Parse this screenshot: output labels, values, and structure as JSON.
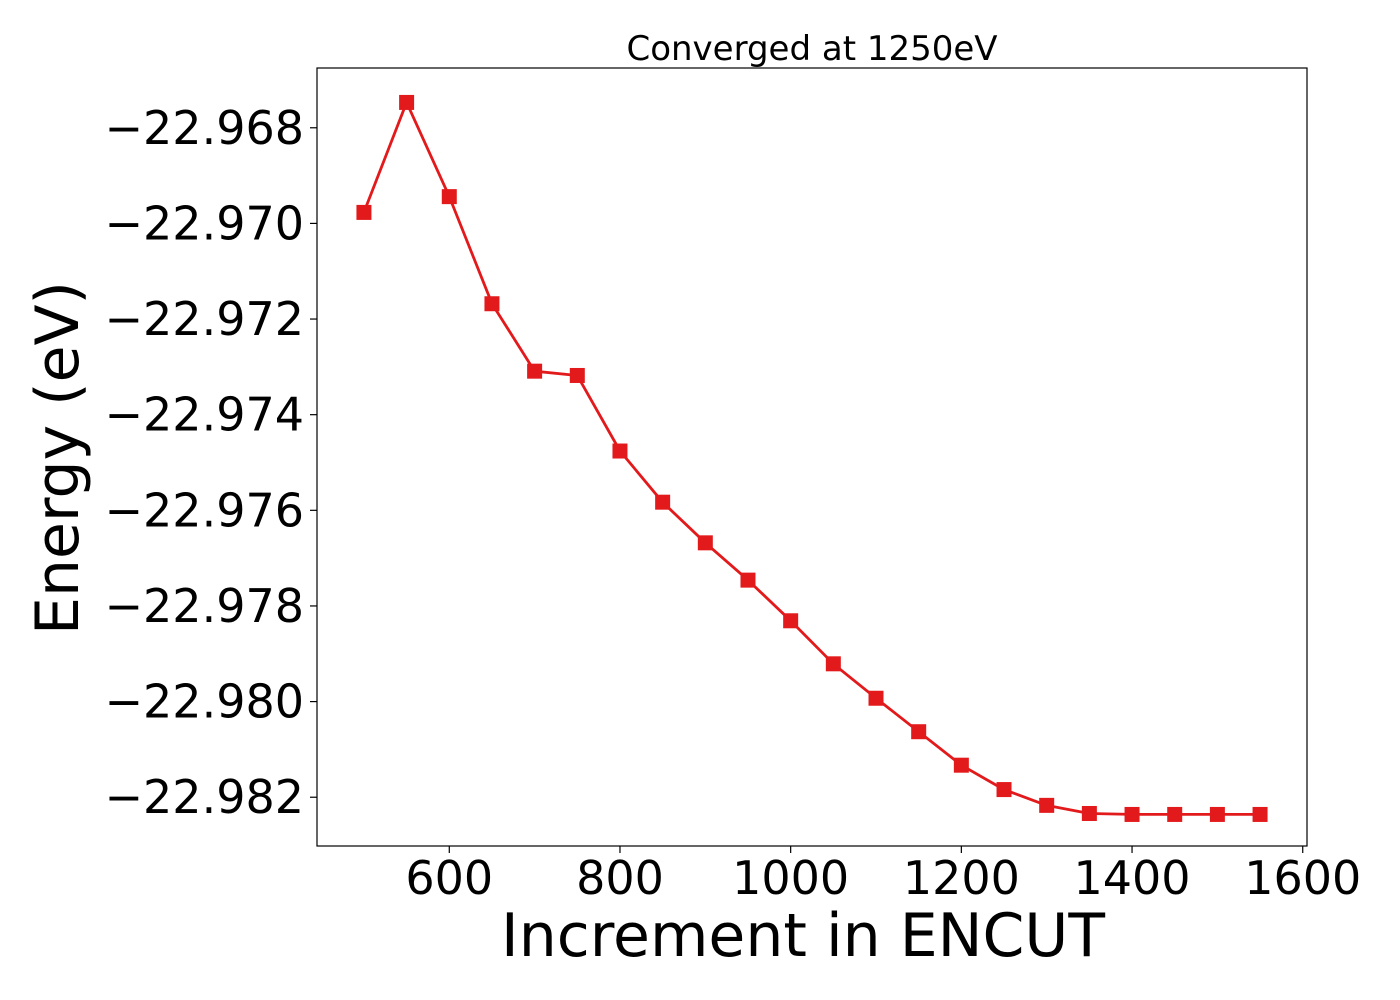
{
  "chart_data": {
    "type": "line",
    "title": "Converged at 1250eV",
    "xlabel": "Increment in ENCUT",
    "ylabel": "Energy (eV)",
    "xlim": [
      445,
      1605
    ],
    "ylim": [
      -22.98302,
      -22.96675
    ],
    "x_ticks": [
      600,
      800,
      1000,
      1200,
      1400,
      1600
    ],
    "x_tick_labels": [
      "600",
      "800",
      "1000",
      "1200",
      "1400",
      "1600"
    ],
    "y_ticks": [
      -22.968,
      -22.97,
      -22.972,
      -22.974,
      -22.976,
      -22.978,
      -22.98,
      -22.982
    ],
    "y_tick_labels": [
      "−22.968",
      "−22.970",
      "−22.972",
      "−22.974",
      "−22.976",
      "−22.978",
      "−22.980",
      "−22.982"
    ],
    "grid": false,
    "series": [
      {
        "color": "#e31a1c",
        "marker": "square",
        "x": [
          500,
          550,
          600,
          650,
          700,
          750,
          800,
          850,
          900,
          950,
          1000,
          1050,
          1100,
          1150,
          1200,
          1250,
          1300,
          1350,
          1400,
          1450,
          1500,
          1550
        ],
        "y": [
          -22.96977,
          -22.96747,
          -22.96944,
          -22.97168,
          -22.97309,
          -22.97318,
          -22.97476,
          -22.97583,
          -22.97668,
          -22.97746,
          -22.97831,
          -22.97921,
          -22.97993,
          -22.98063,
          -22.98133,
          -22.98184,
          -22.98217,
          -22.98234,
          -22.98236,
          -22.98236,
          -22.98236,
          -22.98236
        ]
      }
    ]
  }
}
